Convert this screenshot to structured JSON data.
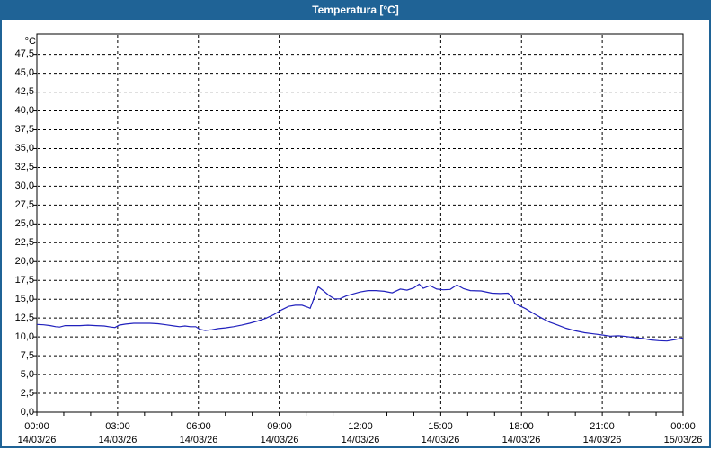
{
  "window": {
    "title": "Temperatura [°C]"
  },
  "colors": {
    "titlebar_bg": "#1f6396",
    "titlebar_text": "#ffffff",
    "window_border": "#1f6396",
    "plot_border": "#000000",
    "gridline": "#000000",
    "series_line": "#2121bd",
    "label_text": "#000000",
    "plot_bg": "#ffffff"
  },
  "chart_data": {
    "type": "line",
    "title": "Temperatura [°C]",
    "grid": "dashed-black",
    "legend": "none",
    "y_axis": {
      "unit": "°C",
      "min": 0,
      "tick_step": 2.5,
      "visible_max": 50.2,
      "tick_labels_top_to_bottom": [
        "47,5",
        "45,0",
        "42,5",
        "40,0",
        "37,5",
        "35,0",
        "32,5",
        "30,0",
        "27,5",
        "25,0",
        "22,5",
        "20,0",
        "17,5",
        "15,0",
        "12,5",
        "10,0",
        "7,5",
        "5,0",
        "2,5",
        "0,0"
      ]
    },
    "x_axis": {
      "total_hours": 24,
      "major_tick_hours": [
        0,
        3,
        6,
        9,
        12,
        15,
        18,
        21,
        24
      ],
      "minor_tick_interval_hours": 1,
      "labels": [
        {
          "time": "00:00",
          "date": "14/03/26"
        },
        {
          "time": "03:00",
          "date": "14/03/26"
        },
        {
          "time": "06:00",
          "date": "14/03/26"
        },
        {
          "time": "09:00",
          "date": "14/03/26"
        },
        {
          "time": "12:00",
          "date": "14/03/26"
        },
        {
          "time": "15:00",
          "date": "14/03/26"
        },
        {
          "time": "18:00",
          "date": "14/03/26"
        },
        {
          "time": "21:00",
          "date": "14/03/26"
        },
        {
          "time": "00:00",
          "date": "15/03/26"
        }
      ]
    },
    "series": [
      {
        "name": "Temperatura",
        "color": "#2121bd",
        "points_time_hours_and_celsius": [
          [
            0.0,
            11.65
          ],
          [
            0.25,
            11.6
          ],
          [
            0.5,
            11.5
          ],
          [
            0.7,
            11.35
          ],
          [
            0.85,
            11.3
          ],
          [
            1.05,
            11.5
          ],
          [
            1.3,
            11.5
          ],
          [
            1.6,
            11.5
          ],
          [
            1.9,
            11.55
          ],
          [
            2.2,
            11.5
          ],
          [
            2.5,
            11.45
          ],
          [
            2.75,
            11.3
          ],
          [
            2.9,
            11.25
          ],
          [
            3.05,
            11.55
          ],
          [
            3.3,
            11.7
          ],
          [
            3.6,
            11.8
          ],
          [
            3.9,
            11.8
          ],
          [
            4.2,
            11.8
          ],
          [
            4.5,
            11.75
          ],
          [
            4.8,
            11.6
          ],
          [
            5.1,
            11.45
          ],
          [
            5.3,
            11.35
          ],
          [
            5.5,
            11.45
          ],
          [
            5.7,
            11.35
          ],
          [
            5.9,
            11.35
          ],
          [
            6.05,
            11.0
          ],
          [
            6.25,
            10.85
          ],
          [
            6.5,
            10.95
          ],
          [
            6.75,
            11.1
          ],
          [
            7.0,
            11.2
          ],
          [
            7.3,
            11.35
          ],
          [
            7.6,
            11.55
          ],
          [
            7.9,
            11.8
          ],
          [
            8.2,
            12.1
          ],
          [
            8.5,
            12.45
          ],
          [
            8.8,
            12.95
          ],
          [
            9.1,
            13.6
          ],
          [
            9.35,
            14.05
          ],
          [
            9.6,
            14.2
          ],
          [
            9.85,
            14.2
          ],
          [
            10.05,
            13.95
          ],
          [
            10.15,
            13.8
          ],
          [
            10.45,
            16.65
          ],
          [
            10.65,
            16.1
          ],
          [
            10.85,
            15.5
          ],
          [
            11.05,
            15.05
          ],
          [
            11.25,
            15.05
          ],
          [
            11.5,
            15.45
          ],
          [
            11.75,
            15.7
          ],
          [
            12.0,
            15.95
          ],
          [
            12.3,
            16.15
          ],
          [
            12.6,
            16.15
          ],
          [
            12.9,
            16.05
          ],
          [
            13.2,
            15.85
          ],
          [
            13.5,
            16.35
          ],
          [
            13.75,
            16.2
          ],
          [
            14.0,
            16.5
          ],
          [
            14.2,
            17.0
          ],
          [
            14.35,
            16.45
          ],
          [
            14.6,
            16.8
          ],
          [
            14.85,
            16.35
          ],
          [
            15.1,
            16.25
          ],
          [
            15.35,
            16.3
          ],
          [
            15.6,
            16.9
          ],
          [
            15.85,
            16.4
          ],
          [
            16.1,
            16.15
          ],
          [
            16.5,
            16.1
          ],
          [
            16.9,
            15.8
          ],
          [
            17.2,
            15.75
          ],
          [
            17.5,
            15.8
          ],
          [
            17.65,
            15.3
          ],
          [
            17.75,
            14.45
          ],
          [
            17.95,
            14.1
          ],
          [
            18.15,
            13.75
          ],
          [
            18.45,
            13.1
          ],
          [
            18.75,
            12.5
          ],
          [
            19.05,
            11.95
          ],
          [
            19.35,
            11.55
          ],
          [
            19.65,
            11.15
          ],
          [
            20.0,
            10.8
          ],
          [
            20.35,
            10.55
          ],
          [
            20.7,
            10.4
          ],
          [
            21.0,
            10.25
          ],
          [
            21.3,
            10.1
          ],
          [
            21.6,
            10.15
          ],
          [
            21.9,
            10.05
          ],
          [
            22.2,
            9.9
          ],
          [
            22.5,
            9.8
          ],
          [
            22.8,
            9.6
          ],
          [
            23.1,
            9.5
          ],
          [
            23.4,
            9.45
          ],
          [
            23.7,
            9.65
          ],
          [
            23.9,
            9.8
          ],
          [
            24.0,
            9.85
          ]
        ]
      }
    ]
  }
}
